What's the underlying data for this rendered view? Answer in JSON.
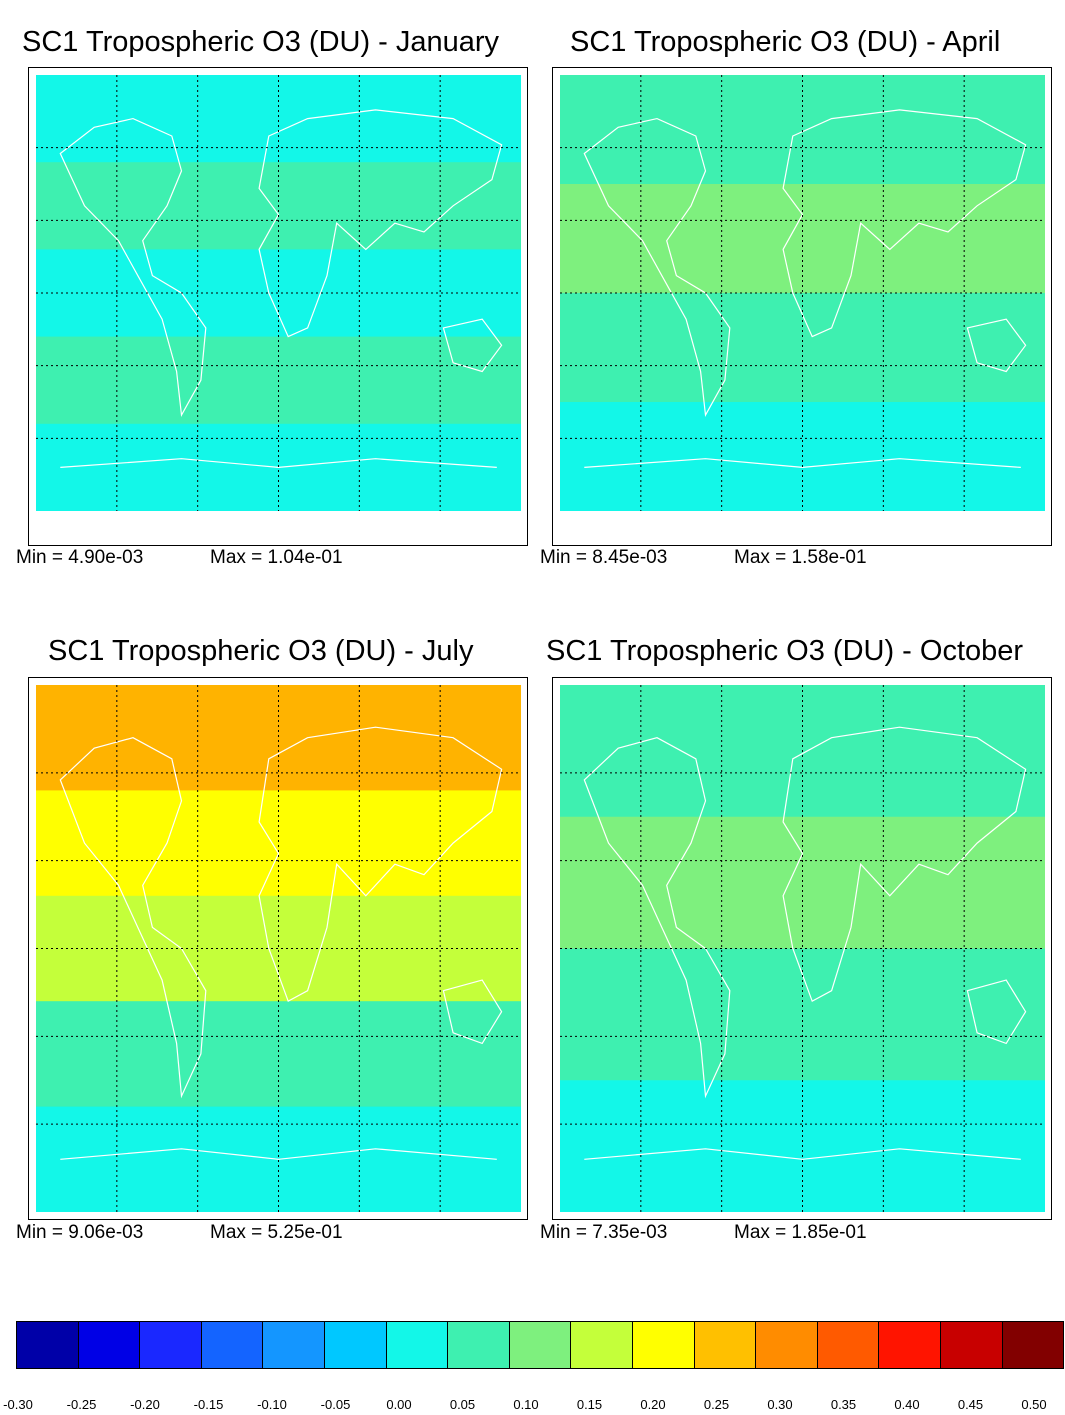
{
  "panels": [
    {
      "title": "SC1 Tropospheric O3 (DU) - January",
      "min_label": "Min = 4.90e-03",
      "max_label": "Max = 1.04e-01",
      "bands": [
        {
          "color": "#13f7e8"
        },
        {
          "color": "#3ef0b0"
        },
        {
          "color": "#13f7e8"
        },
        {
          "color": "#3ef0b0"
        },
        {
          "color": "#13f7e8"
        }
      ]
    },
    {
      "title": "SC1 Tropospheric O3 (DU) - April",
      "min_label": "Min = 8.45e-03",
      "max_label": "Max = 1.58e-01",
      "bands": [
        {
          "color": "#3ef0b0"
        },
        {
          "color": "#7ef07e"
        },
        {
          "color": "#3ef0b0"
        },
        {
          "color": "#13f7e8"
        }
      ]
    },
    {
      "title": "SC1 Tropospheric O3 (DU) - July",
      "min_label": "Min = 9.06e-03",
      "max_label": "Max = 5.25e-01",
      "bands": [
        {
          "color": "#ffb300"
        },
        {
          "color": "#ffff00"
        },
        {
          "color": "#c4ff3a"
        },
        {
          "color": "#3ef0b0"
        },
        {
          "color": "#13f7e8"
        }
      ]
    },
    {
      "title": "SC1 Tropospheric O3 (DU) - October",
      "min_label": "Min = 7.35e-03",
      "max_label": "Max = 1.85e-01",
      "bands": [
        {
          "color": "#3ef0b0"
        },
        {
          "color": "#7ef07e"
        },
        {
          "color": "#3ef0b0"
        },
        {
          "color": "#13f7e8"
        }
      ]
    }
  ],
  "colorbar": {
    "colors": [
      "#0000a8",
      "#0000e6",
      "#1a28ff",
      "#1464ff",
      "#1496ff",
      "#00c8ff",
      "#13f7e8",
      "#3ef0b0",
      "#7ef07e",
      "#c4ff3a",
      "#ffff00",
      "#ffc000",
      "#ff8c00",
      "#ff5a00",
      "#ff1400",
      "#c80000",
      "#820000"
    ],
    "tick_labels": [
      "-0.30",
      "-0.25",
      "-0.20",
      "-0.15",
      "-0.10",
      "-0.05",
      "0.00",
      "0.05",
      "0.10",
      "0.15",
      "0.20",
      "0.25",
      "0.30",
      "0.35",
      "0.40",
      "0.45",
      "0.50"
    ]
  }
}
